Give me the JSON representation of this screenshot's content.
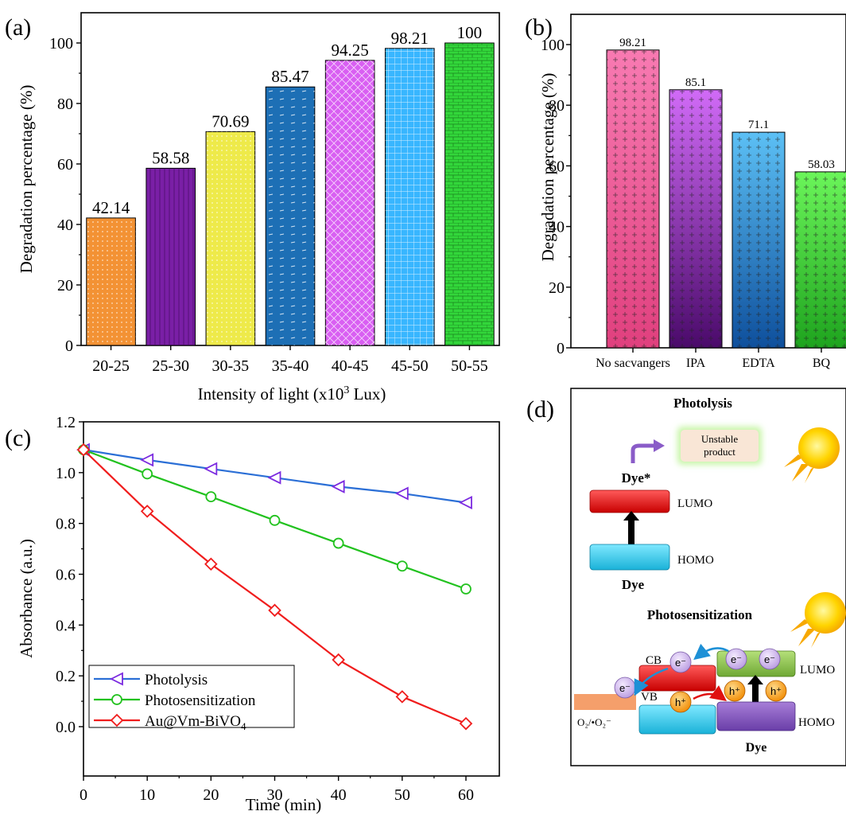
{
  "chart_data": [
    {
      "panel": "(a)",
      "type": "bar",
      "xlabel": "Intensity of light (x10",
      "xlabel_sup": "3",
      "xlabel_tail": " Lux)",
      "ylabel": "Degradation percentage (%)",
      "ylim": [
        0,
        100
      ],
      "yticks": [
        "0",
        "20",
        "40",
        "60",
        "80",
        "100"
      ],
      "categories": [
        "20-25",
        "25-30",
        "30-35",
        "35-40",
        "40-45",
        "45-50",
        "50-55"
      ],
      "values": [
        42.14,
        58.58,
        70.69,
        85.47,
        94.25,
        98.21,
        100
      ],
      "value_labels": [
        "42.14",
        "58.58",
        "70.69",
        "85.47",
        "94.25",
        "98.21",
        "100"
      ],
      "colors": [
        "#f39234",
        "#7a1fa6",
        "#eeea4a",
        "#1d6fb5",
        "#d95ff2",
        "#38b6ff",
        "#32d63a"
      ]
    },
    {
      "panel": "(b)",
      "type": "bar",
      "ylabel": "Degradation percentage (%)",
      "ylim": [
        0,
        100
      ],
      "yticks": [
        "0",
        "20",
        "40",
        "60",
        "80",
        "100"
      ],
      "categories": [
        "No sacvangers",
        "IPA",
        "EDTA",
        "BQ"
      ],
      "values": [
        98.21,
        85.1,
        71.1,
        58.03
      ],
      "value_labels": [
        "98.21",
        "85.1",
        "71.1",
        "58.03"
      ],
      "colors": [
        "#f56aa6",
        "#b548e8",
        "#2b8ad8",
        "#4ced3e"
      ]
    },
    {
      "panel": "(c)",
      "type": "line",
      "xlabel": "Time (min)",
      "ylabel": "Absorbance (a.u.)",
      "xlim": [
        0,
        60
      ],
      "ylim": [
        0,
        1.2
      ],
      "xticks": [
        "0",
        "10",
        "20",
        "30",
        "40",
        "50",
        "60"
      ],
      "yticks": [
        "0.0",
        "0.2",
        "0.4",
        "0.6",
        "0.8",
        "1.0",
        "1.2"
      ],
      "x": [
        0,
        10,
        20,
        30,
        40,
        50,
        60
      ],
      "series": [
        {
          "name": "Photolysis",
          "values": [
            1.09,
            1.05,
            1.015,
            0.98,
            0.945,
            0.918,
            0.882
          ],
          "color": "#2b6fd6",
          "marker": "triangle-left",
          "marker_color": "#7b2ae0"
        },
        {
          "name": "Photosensitization",
          "values": [
            1.09,
            0.995,
            0.905,
            0.812,
            0.722,
            0.632,
            0.542
          ],
          "color": "#22c21f",
          "marker": "circle",
          "marker_color": "#22c21f"
        },
        {
          "name": "Au@Vm-BiVO",
          "name_sub": "4",
          "values": [
            1.09,
            0.848,
            0.64,
            0.458,
            0.263,
            0.118,
            0.012
          ],
          "color": "#f01d1d",
          "marker": "diamond",
          "marker_color": "#f01d1d"
        }
      ]
    }
  ],
  "panel_labels": {
    "a": "(a)",
    "b": "(b)",
    "c": "(c)",
    "d": "(d)"
  },
  "diagram": {
    "photolysis_title": "Photolysis",
    "unstable_product": [
      "Unstable",
      "product"
    ],
    "dye_excited": "Dye*",
    "lumo": "LUMO",
    "homo": "HOMO",
    "dye": "Dye",
    "photosensitization_title": "Photosensitization",
    "cb": "CB",
    "vb": "VB",
    "electron": "e⁻",
    "hole": "h⁺",
    "o2_label": "O₂/•O₂⁻",
    "lumo2": "LUMO",
    "homo2": "HOMO",
    "dye2": "Dye"
  }
}
